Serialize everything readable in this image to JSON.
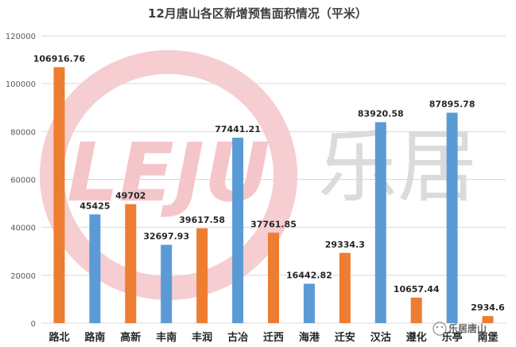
{
  "chart_data": {
    "type": "bar",
    "title": "12月唐山各区新增预售面积情况（平米）",
    "xlabel": "",
    "ylabel": "",
    "categories": [
      "路北",
      "路南",
      "高新",
      "丰南",
      "丰润",
      "古冶",
      "迁西",
      "海港",
      "迁安",
      "汉沽",
      "遵化",
      "乐亭",
      "南堡"
    ],
    "values": [
      106916.76,
      45425,
      49702,
      32697.93,
      39617.58,
      77441.21,
      37761.85,
      16442.82,
      29334.3,
      83920.58,
      10657.44,
      87895.78,
      2934.6
    ],
    "data_labels": [
      "106916.76",
      "45425",
      "49702",
      "32697.93",
      "39617.58",
      "77441.21",
      "37761.85",
      "16442.82",
      "29334.3",
      "83920.58",
      "10657.44",
      "87895.78",
      "2934.6"
    ],
    "bar_colors": [
      "#ED7D31",
      "#5B9BD5",
      "#ED7D31",
      "#5B9BD5",
      "#ED7D31",
      "#5B9BD5",
      "#ED7D31",
      "#5B9BD5",
      "#ED7D31",
      "#5B9BD5",
      "#ED7D31",
      "#5B9BD5",
      "#ED7D31"
    ],
    "ylim": [
      0,
      120000
    ],
    "yticks": [
      0,
      20000,
      40000,
      60000,
      80000,
      100000,
      120000
    ],
    "ytick_labels": [
      "0",
      "20000",
      "40000",
      "60000",
      "80000",
      "100000",
      "120000"
    ],
    "grid": true,
    "legend": "none"
  },
  "watermark": {
    "logo_text": "LEJU",
    "brand_text": "乐居",
    "corner_text": "乐居唐山",
    "logo_color": "#F2B8BE",
    "brand_color": "#BFBFBF"
  }
}
